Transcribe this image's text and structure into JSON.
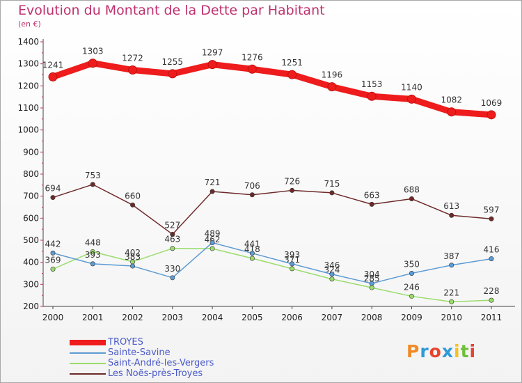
{
  "header": {
    "title": "Evolution du Montant de la Dette par Habitant",
    "subtitle": "(en €)"
  },
  "logo": {
    "text": "Proxiti",
    "colors": [
      "#f08a24",
      "#2e9ad8",
      "#e8432e",
      "#2e9ad8",
      "#f5c11e",
      "#6fbf3a",
      "#e8432e"
    ]
  },
  "chart_data": {
    "type": "line",
    "x": [
      2000,
      2001,
      2002,
      2003,
      2004,
      2005,
      2006,
      2007,
      2008,
      2009,
      2010,
      2011
    ],
    "ylim": [
      200,
      1400
    ],
    "yticks": [
      200,
      300,
      400,
      500,
      600,
      700,
      800,
      900,
      1000,
      1100,
      1200,
      1300,
      1400
    ],
    "grid": false,
    "legend_position": "bottom-left",
    "series": [
      {
        "name": "TROYES",
        "color": "#ee1c1c",
        "values": [
          1241,
          1303,
          1272,
          1255,
          1297,
          1276,
          1251,
          1196,
          1153,
          1140,
          1082,
          1069
        ]
      },
      {
        "name": "Sainte-Savine",
        "color": "#5d9bd3",
        "values": [
          442,
          393,
          383,
          330,
          489,
          441,
          393,
          346,
          304,
          350,
          387,
          416
        ]
      },
      {
        "name": "Saint-André-les-Vergers",
        "color": "#9bdc6c",
        "values": [
          369,
          448,
          402,
          463,
          462,
          418,
          371,
          324,
          285,
          246,
          221,
          228
        ]
      },
      {
        "name": "Les Noës-près-Troyes",
        "color": "#6e2a2a",
        "values": [
          694,
          753,
          660,
          527,
          721,
          706,
          726,
          715,
          663,
          688,
          613,
          597
        ]
      }
    ]
  }
}
